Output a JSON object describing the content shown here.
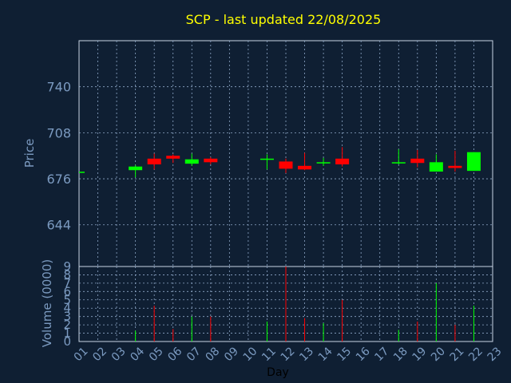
{
  "chart_data": {
    "type": "candlestick",
    "title": "SCP - last updated 22/08/2025",
    "xlabel": "Day",
    "ylabel_price": "Price",
    "ylabel_volume": "Volume (0000)",
    "x_ticks": [
      "01",
      "02",
      "03",
      "04",
      "05",
      "06",
      "07",
      "08",
      "09",
      "10",
      "11",
      "12",
      "13",
      "14",
      "15",
      "16",
      "17",
      "18",
      "19",
      "20",
      "21",
      "22",
      "23"
    ],
    "price_ticks": [
      644,
      676,
      708,
      740
    ],
    "price_ylim": [
      615,
      772
    ],
    "volume_ticks": [
      0,
      1,
      2,
      3,
      4,
      5,
      6,
      7,
      8,
      9
    ],
    "volume_ylim": [
      0,
      9
    ],
    "grid": true,
    "colors": {
      "up": "#00ff00",
      "down": "#ff0000",
      "background": "#0f1f33",
      "plot": "#0f1f33",
      "grid": "#8fa8c8",
      "title": "#ffff00"
    },
    "candles": [
      {
        "day": 1,
        "open": 680.5,
        "close": 680.5,
        "high": 680.5,
        "low": 680.5,
        "volume": 0
      },
      {
        "day": 4,
        "open": 682,
        "close": 684.5,
        "high": 685.5,
        "low": 677,
        "volume": 1.3
      },
      {
        "day": 5,
        "open": 690,
        "close": 686,
        "high": 693.5,
        "low": 682.5,
        "volume": 4.3
      },
      {
        "day": 6,
        "open": 692,
        "close": 690,
        "high": 693,
        "low": 687,
        "volume": 1.5
      },
      {
        "day": 7,
        "open": 686.5,
        "close": 689.5,
        "high": 693.5,
        "low": 685,
        "volume": 3
      },
      {
        "day": 8,
        "open": 690,
        "close": 687.5,
        "high": 691,
        "low": 686,
        "volume": 3
      },
      {
        "day": 11,
        "open": 690,
        "close": 690,
        "high": 693,
        "low": 682.5,
        "volume": 2.4
      },
      {
        "day": 12,
        "open": 688,
        "close": 683,
        "high": 690,
        "low": 680,
        "volume": 9
      },
      {
        "day": 13,
        "open": 685,
        "close": 682.5,
        "high": 694,
        "low": 682,
        "volume": 2.8
      },
      {
        "day": 14,
        "open": 687.5,
        "close": 687.5,
        "high": 690.5,
        "low": 685,
        "volume": 2.2
      },
      {
        "day": 15,
        "open": 690,
        "close": 686,
        "high": 698,
        "low": 684.5,
        "volume": 5
      },
      {
        "day": 18,
        "open": 687.5,
        "close": 687.5,
        "high": 696.5,
        "low": 686,
        "volume": 1.4
      },
      {
        "day": 19,
        "open": 690,
        "close": 687,
        "high": 696,
        "low": 684,
        "volume": 2.4
      },
      {
        "day": 20,
        "open": 681,
        "close": 687.5,
        "high": 693,
        "low": 681,
        "volume": 7
      },
      {
        "day": 21,
        "open": 685,
        "close": 683.5,
        "high": 695.5,
        "low": 681,
        "volume": 2
      },
      {
        "day": 22,
        "open": 681.5,
        "close": 694.5,
        "high": 694.5,
        "low": 681.5,
        "volume": 4.3
      }
    ]
  }
}
